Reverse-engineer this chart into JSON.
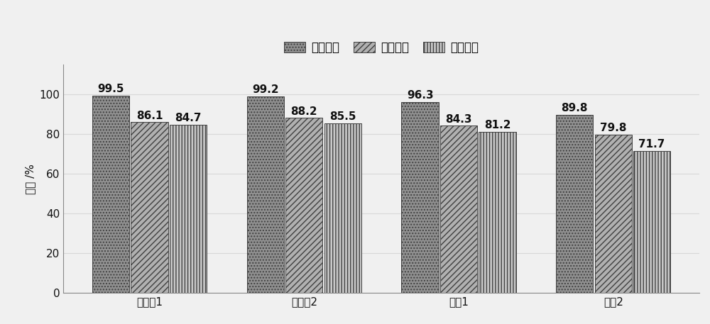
{
  "categories": [
    "实施夃1",
    "实施夃2",
    "对比1",
    "对比2"
  ],
  "series": [
    {
      "name": "库仑效率",
      "values": [
        99.5,
        99.2,
        96.3,
        89.8
      ]
    },
    {
      "name": "电压效率",
      "values": [
        86.1,
        88.2,
        84.3,
        79.8
      ]
    },
    {
      "name": "能量效率",
      "values": [
        84.7,
        85.5,
        81.2,
        71.7
      ]
    }
  ],
  "ylabel": "效率 /%",
  "ylim": [
    0,
    115
  ],
  "yticks": [
    0,
    20,
    40,
    60,
    80,
    100
  ],
  "bar_width": 0.25,
  "background_color": "#f0f0f0",
  "hatch_patterns": [
    "....",
    "////",
    "||||"
  ],
  "bar_facecolors": [
    "#909090",
    "#b0b0b0",
    "#c8c8c8"
  ],
  "bar_edgecolors": [
    "#404040",
    "#404040",
    "#404040"
  ],
  "title_fontsize": 12,
  "label_fontsize": 11,
  "tick_fontsize": 11,
  "annotation_fontsize": 11,
  "annotation_fontweight": "bold"
}
